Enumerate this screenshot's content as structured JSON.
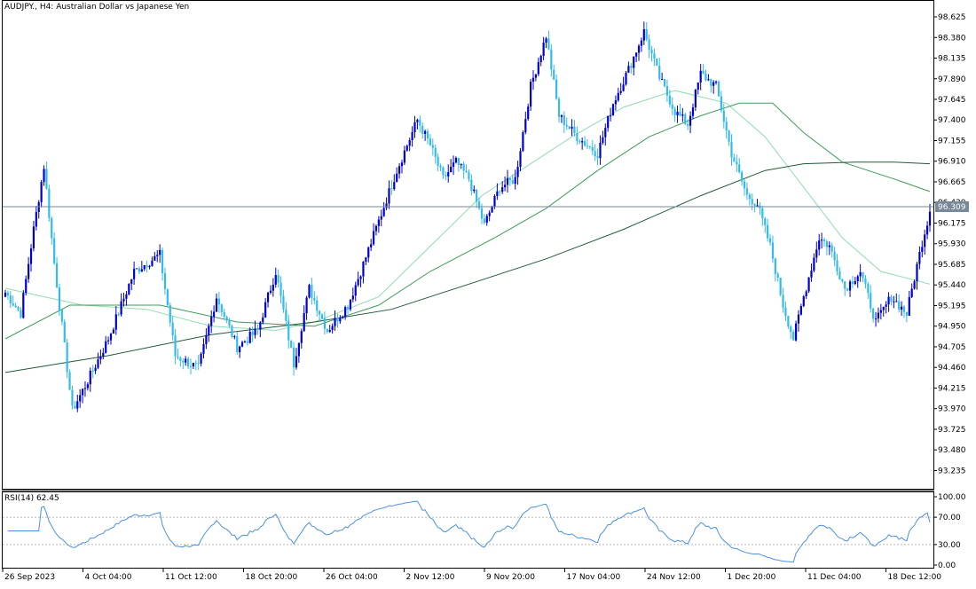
{
  "header": {
    "title": "AUDJPY., H4:  Australian Dollar vs Japanese Yen"
  },
  "price_axis": {
    "labels": [
      "98.625",
      "98.380",
      "98.135",
      "97.890",
      "97.645",
      "97.400",
      "97.155",
      "96.910",
      "96.665",
      "96.420",
      "96.175",
      "95.930",
      "95.685",
      "95.440",
      "95.195",
      "94.950",
      "94.705",
      "94.460",
      "94.215",
      "93.970",
      "93.725",
      "93.480",
      "93.235"
    ],
    "current_price": "96.309"
  },
  "rsi": {
    "label": "RSI(14) 62.45",
    "levels": [
      "100.00",
      "70.00",
      "30.00",
      "0.00"
    ]
  },
  "time_axis": {
    "labels": [
      "26 Sep 2023",
      "4 Oct 04:00",
      "11 Oct 12:00",
      "18 Oct 20:00",
      "26 Oct 04:00",
      "2 Nov 12:00",
      "9 Nov 20:00",
      "17 Nov 04:00",
      "24 Nov 12:00",
      "1 Dec 20:00",
      "11 Dec 04:00",
      "18 Dec 12:00"
    ]
  },
  "colors": {
    "bull_candle": "#0000cc",
    "bear_candle": "#33bbee",
    "ma_fast": "#90dcb0",
    "ma_mid": "#3e9a5a",
    "ma_slow": "#225a3a",
    "rsi_line": "#4a90e2",
    "grid_dash": "#b8b8b8"
  },
  "chart_data": {
    "type": "candlestick",
    "symbol": "AUDJPY.",
    "timeframe": "H4",
    "ylim": [
      93.05,
      98.72
    ],
    "key_points": [
      {
        "i": 0,
        "close": 95.35
      },
      {
        "i": 6,
        "close": 95.1
      },
      {
        "i": 11,
        "close": 96.1
      },
      {
        "i": 15,
        "close": 96.85
      },
      {
        "i": 19,
        "close": 95.7
      },
      {
        "i": 26,
        "close": 93.95
      },
      {
        "i": 32,
        "close": 94.3
      },
      {
        "i": 40,
        "close": 94.8
      },
      {
        "i": 50,
        "close": 95.6
      },
      {
        "i": 60,
        "close": 95.8
      },
      {
        "i": 66,
        "close": 94.6
      },
      {
        "i": 75,
        "close": 94.45
      },
      {
        "i": 82,
        "close": 95.3
      },
      {
        "i": 90,
        "close": 94.7
      },
      {
        "i": 98,
        "close": 94.9
      },
      {
        "i": 105,
        "close": 95.6
      },
      {
        "i": 112,
        "close": 94.5
      },
      {
        "i": 118,
        "close": 95.4
      },
      {
        "i": 125,
        "close": 94.9
      },
      {
        "i": 133,
        "close": 95.2
      },
      {
        "i": 138,
        "close": 95.6
      },
      {
        "i": 145,
        "close": 96.2
      },
      {
        "i": 152,
        "close": 96.8
      },
      {
        "i": 160,
        "close": 97.4
      },
      {
        "i": 165,
        "close": 97.1
      },
      {
        "i": 170,
        "close": 96.7
      },
      {
        "i": 175,
        "close": 96.9
      },
      {
        "i": 180,
        "close": 96.7
      },
      {
        "i": 186,
        "close": 96.15
      },
      {
        "i": 192,
        "close": 96.6
      },
      {
        "i": 198,
        "close": 96.7
      },
      {
        "i": 204,
        "close": 97.8
      },
      {
        "i": 210,
        "close": 98.4
      },
      {
        "i": 215,
        "close": 97.45
      },
      {
        "i": 222,
        "close": 97.2
      },
      {
        "i": 230,
        "close": 97.0
      },
      {
        "i": 236,
        "close": 97.6
      },
      {
        "i": 242,
        "close": 98.0
      },
      {
        "i": 248,
        "close": 98.45
      },
      {
        "i": 254,
        "close": 97.9
      },
      {
        "i": 260,
        "close": 97.5
      },
      {
        "i": 265,
        "close": 97.35
      },
      {
        "i": 270,
        "close": 97.95
      },
      {
        "i": 276,
        "close": 97.8
      },
      {
        "i": 282,
        "close": 97.0
      },
      {
        "i": 288,
        "close": 96.5
      },
      {
        "i": 292,
        "close": 96.4
      },
      {
        "i": 297,
        "close": 95.9
      },
      {
        "i": 302,
        "close": 95.2
      },
      {
        "i": 306,
        "close": 94.8
      },
      {
        "i": 310,
        "close": 95.3
      },
      {
        "i": 316,
        "close": 96.0
      },
      {
        "i": 320,
        "close": 95.9
      },
      {
        "i": 326,
        "close": 95.4
      },
      {
        "i": 332,
        "close": 95.6
      },
      {
        "i": 338,
        "close": 95.0
      },
      {
        "i": 344,
        "close": 95.3
      },
      {
        "i": 350,
        "close": 95.1
      },
      {
        "i": 356,
        "close": 95.95
      },
      {
        "i": 359,
        "close": 96.31
      }
    ],
    "moving_averages": [
      {
        "period_role": "fast",
        "points": [
          [
            0,
            95.4
          ],
          [
            30,
            95.2
          ],
          [
            55,
            95.15
          ],
          [
            80,
            94.95
          ],
          [
            105,
            94.9
          ],
          [
            120,
            95.0
          ],
          [
            145,
            95.3
          ],
          [
            165,
            95.9
          ],
          [
            185,
            96.5
          ],
          [
            205,
            96.9
          ],
          [
            220,
            97.2
          ],
          [
            240,
            97.55
          ],
          [
            260,
            97.75
          ],
          [
            280,
            97.6
          ],
          [
            295,
            97.2
          ],
          [
            310,
            96.6
          ],
          [
            325,
            96.0
          ],
          [
            340,
            95.6
          ],
          [
            359,
            95.45
          ]
        ]
      },
      {
        "period_role": "mid",
        "points": [
          [
            0,
            94.8
          ],
          [
            25,
            95.2
          ],
          [
            60,
            95.2
          ],
          [
            90,
            95.0
          ],
          [
            120,
            94.95
          ],
          [
            145,
            95.2
          ],
          [
            165,
            95.6
          ],
          [
            190,
            96.0
          ],
          [
            210,
            96.35
          ],
          [
            230,
            96.8
          ],
          [
            250,
            97.2
          ],
          [
            270,
            97.45
          ],
          [
            285,
            97.6
          ],
          [
            298,
            97.6
          ],
          [
            310,
            97.25
          ],
          [
            325,
            96.9
          ],
          [
            345,
            96.7
          ],
          [
            359,
            96.55
          ]
        ]
      },
      {
        "period_role": "slow",
        "points": [
          [
            0,
            94.4
          ],
          [
            40,
            94.6
          ],
          [
            80,
            94.85
          ],
          [
            120,
            95.0
          ],
          [
            150,
            95.15
          ],
          [
            180,
            95.45
          ],
          [
            210,
            95.75
          ],
          [
            240,
            96.1
          ],
          [
            270,
            96.5
          ],
          [
            295,
            96.8
          ],
          [
            310,
            96.88
          ],
          [
            330,
            96.9
          ],
          [
            345,
            96.9
          ],
          [
            359,
            96.88
          ]
        ]
      }
    ],
    "rsi": {
      "period": 14,
      "last": 62.45,
      "ylim": [
        0,
        100
      ],
      "levels": [
        70,
        30
      ]
    }
  }
}
